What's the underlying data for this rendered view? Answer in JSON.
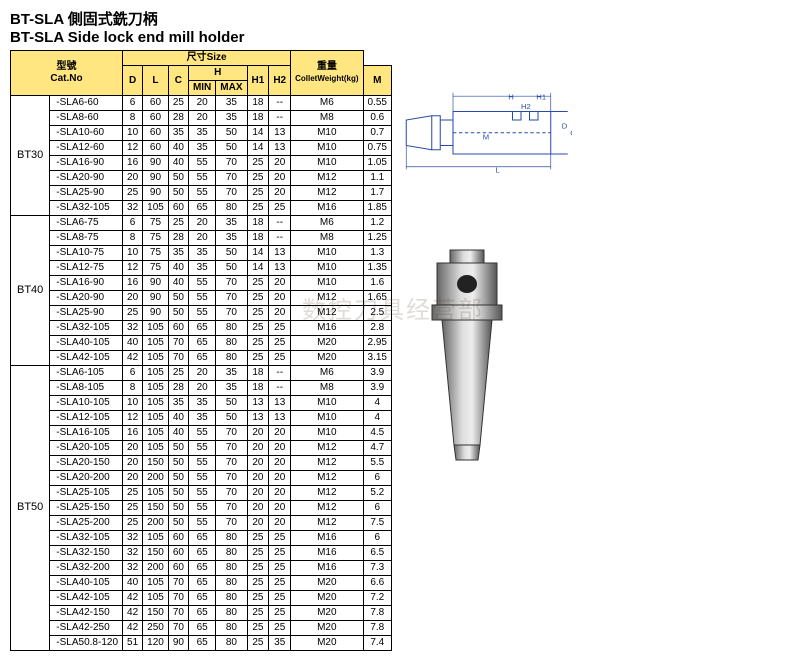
{
  "title_cn": "BT-SLA 側固式銑刀柄",
  "title_en": "BT-SLA Side lock end mill holder",
  "header": {
    "catno_cn": "型號",
    "catno_en": "Cat.No",
    "size_cn": "尺寸",
    "size_en": "Size",
    "D": "D",
    "L": "L",
    "C": "C",
    "H": "H",
    "MIN": "MIN",
    "MAX": "MAX",
    "H1": "H1",
    "H2": "H2",
    "M": "M",
    "weight_cn": "重量",
    "weight_en": "ColletWeight(kg)"
  },
  "groups": [
    {
      "name": "BT30",
      "rows": [
        {
          "cat": "-SLA6-60",
          "D": "6",
          "L": "60",
          "C": "25",
          "MIN": "20",
          "MAX": "35",
          "H1": "18",
          "H2": "--",
          "M": "M6",
          "W": "0.55"
        },
        {
          "cat": "-SLA8-60",
          "D": "8",
          "L": "60",
          "C": "28",
          "MIN": "20",
          "MAX": "35",
          "H1": "18",
          "H2": "--",
          "M": "M8",
          "W": "0.6"
        },
        {
          "cat": "-SLA10-60",
          "D": "10",
          "L": "60",
          "C": "35",
          "MIN": "35",
          "MAX": "50",
          "H1": "14",
          "H2": "13",
          "M": "M10",
          "W": "0.7"
        },
        {
          "cat": "-SLA12-60",
          "D": "12",
          "L": "60",
          "C": "40",
          "MIN": "35",
          "MAX": "50",
          "H1": "14",
          "H2": "13",
          "M": "M10",
          "W": "0.75"
        },
        {
          "cat": "-SLA16-90",
          "D": "16",
          "L": "90",
          "C": "40",
          "MIN": "55",
          "MAX": "70",
          "H1": "25",
          "H2": "20",
          "M": "M10",
          "W": "1.05"
        },
        {
          "cat": "-SLA20-90",
          "D": "20",
          "L": "90",
          "C": "50",
          "MIN": "55",
          "MAX": "70",
          "H1": "25",
          "H2": "20",
          "M": "M12",
          "W": "1.1"
        },
        {
          "cat": "-SLA25-90",
          "D": "25",
          "L": "90",
          "C": "50",
          "MIN": "55",
          "MAX": "70",
          "H1": "25",
          "H2": "20",
          "M": "M12",
          "W": "1.7"
        },
        {
          "cat": "-SLA32-105",
          "D": "32",
          "L": "105",
          "C": "60",
          "MIN": "65",
          "MAX": "80",
          "H1": "25",
          "H2": "25",
          "M": "M16",
          "W": "1.85"
        }
      ]
    },
    {
      "name": "BT40",
      "rows": [
        {
          "cat": "-SLA6-75",
          "D": "6",
          "L": "75",
          "C": "25",
          "MIN": "20",
          "MAX": "35",
          "H1": "18",
          "H2": "--",
          "M": "M6",
          "W": "1.2"
        },
        {
          "cat": "-SLA8-75",
          "D": "8",
          "L": "75",
          "C": "28",
          "MIN": "20",
          "MAX": "35",
          "H1": "18",
          "H2": "--",
          "M": "M8",
          "W": "1.25"
        },
        {
          "cat": "-SLA10-75",
          "D": "10",
          "L": "75",
          "C": "35",
          "MIN": "35",
          "MAX": "50",
          "H1": "14",
          "H2": "13",
          "M": "M10",
          "W": "1.3"
        },
        {
          "cat": "-SLA12-75",
          "D": "12",
          "L": "75",
          "C": "40",
          "MIN": "35",
          "MAX": "50",
          "H1": "14",
          "H2": "13",
          "M": "M10",
          "W": "1.35"
        },
        {
          "cat": "-SLA16-90",
          "D": "16",
          "L": "90",
          "C": "40",
          "MIN": "55",
          "MAX": "70",
          "H1": "25",
          "H2": "20",
          "M": "M10",
          "W": "1.6"
        },
        {
          "cat": "-SLA20-90",
          "D": "20",
          "L": "90",
          "C": "50",
          "MIN": "55",
          "MAX": "70",
          "H1": "25",
          "H2": "20",
          "M": "M12",
          "W": "1.65"
        },
        {
          "cat": "-SLA25-90",
          "D": "25",
          "L": "90",
          "C": "50",
          "MIN": "55",
          "MAX": "70",
          "H1": "25",
          "H2": "20",
          "M": "M12",
          "W": "2.5"
        },
        {
          "cat": "-SLA32-105",
          "D": "32",
          "L": "105",
          "C": "60",
          "MIN": "65",
          "MAX": "80",
          "H1": "25",
          "H2": "25",
          "M": "M16",
          "W": "2.8"
        },
        {
          "cat": "-SLA40-105",
          "D": "40",
          "L": "105",
          "C": "70",
          "MIN": "65",
          "MAX": "80",
          "H1": "25",
          "H2": "25",
          "M": "M20",
          "W": "2.95"
        },
        {
          "cat": "-SLA42-105",
          "D": "42",
          "L": "105",
          "C": "70",
          "MIN": "65",
          "MAX": "80",
          "H1": "25",
          "H2": "25",
          "M": "M20",
          "W": "3.15"
        }
      ]
    },
    {
      "name": "BT50",
      "rows": [
        {
          "cat": "-SLA6-105",
          "D": "6",
          "L": "105",
          "C": "25",
          "MIN": "20",
          "MAX": "35",
          "H1": "18",
          "H2": "--",
          "M": "M6",
          "W": "3.9"
        },
        {
          "cat": "-SLA8-105",
          "D": "8",
          "L": "105",
          "C": "28",
          "MIN": "20",
          "MAX": "35",
          "H1": "18",
          "H2": "--",
          "M": "M8",
          "W": "3.9"
        },
        {
          "cat": "-SLA10-105",
          "D": "10",
          "L": "105",
          "C": "35",
          "MIN": "35",
          "MAX": "50",
          "H1": "13",
          "H2": "13",
          "M": "M10",
          "W": "4"
        },
        {
          "cat": "-SLA12-105",
          "D": "12",
          "L": "105",
          "C": "40",
          "MIN": "35",
          "MAX": "50",
          "H1": "13",
          "H2": "13",
          "M": "M10",
          "W": "4"
        },
        {
          "cat": "-SLA16-105",
          "D": "16",
          "L": "105",
          "C": "40",
          "MIN": "55",
          "MAX": "70",
          "H1": "20",
          "H2": "20",
          "M": "M10",
          "W": "4.5"
        },
        {
          "cat": "-SLA20-105",
          "D": "20",
          "L": "105",
          "C": "50",
          "MIN": "55",
          "MAX": "70",
          "H1": "20",
          "H2": "20",
          "M": "M12",
          "W": "4.7"
        },
        {
          "cat": "-SLA20-150",
          "D": "20",
          "L": "150",
          "C": "50",
          "MIN": "55",
          "MAX": "70",
          "H1": "20",
          "H2": "20",
          "M": "M12",
          "W": "5.5"
        },
        {
          "cat": "-SLA20-200",
          "D": "20",
          "L": "200",
          "C": "50",
          "MIN": "55",
          "MAX": "70",
          "H1": "20",
          "H2": "20",
          "M": "M12",
          "W": "6"
        },
        {
          "cat": "-SLA25-105",
          "D": "25",
          "L": "105",
          "C": "50",
          "MIN": "55",
          "MAX": "70",
          "H1": "20",
          "H2": "20",
          "M": "M12",
          "W": "5.2"
        },
        {
          "cat": "-SLA25-150",
          "D": "25",
          "L": "150",
          "C": "50",
          "MIN": "55",
          "MAX": "70",
          "H1": "20",
          "H2": "20",
          "M": "M12",
          "W": "6"
        },
        {
          "cat": "-SLA25-200",
          "D": "25",
          "L": "200",
          "C": "50",
          "MIN": "55",
          "MAX": "70",
          "H1": "20",
          "H2": "20",
          "M": "M12",
          "W": "7.5"
        },
        {
          "cat": "-SLA32-105",
          "D": "32",
          "L": "105",
          "C": "60",
          "MIN": "65",
          "MAX": "80",
          "H1": "25",
          "H2": "25",
          "M": "M16",
          "W": "6"
        },
        {
          "cat": "-SLA32-150",
          "D": "32",
          "L": "150",
          "C": "60",
          "MIN": "65",
          "MAX": "80",
          "H1": "25",
          "H2": "25",
          "M": "M16",
          "W": "6.5"
        },
        {
          "cat": "-SLA32-200",
          "D": "32",
          "L": "200",
          "C": "60",
          "MIN": "65",
          "MAX": "80",
          "H1": "25",
          "H2": "25",
          "M": "M16",
          "W": "7.3"
        },
        {
          "cat": "-SLA40-105",
          "D": "40",
          "L": "105",
          "C": "70",
          "MIN": "65",
          "MAX": "80",
          "H1": "25",
          "H2": "25",
          "M": "M20",
          "W": "6.6"
        },
        {
          "cat": "-SLA42-105",
          "D": "42",
          "L": "105",
          "C": "70",
          "MIN": "65",
          "MAX": "80",
          "H1": "25",
          "H2": "25",
          "M": "M20",
          "W": "7.2"
        },
        {
          "cat": "-SLA42-150",
          "D": "42",
          "L": "150",
          "C": "70",
          "MIN": "65",
          "MAX": "80",
          "H1": "25",
          "H2": "25",
          "M": "M20",
          "W": "7.8"
        },
        {
          "cat": "-SLA42-250",
          "D": "42",
          "L": "250",
          "C": "70",
          "MIN": "65",
          "MAX": "80",
          "H1": "25",
          "H2": "25",
          "M": "M20",
          "W": "7.8"
        },
        {
          "cat": "-SLA50.8-120",
          "D": "51",
          "L": "120",
          "C": "90",
          "MIN": "65",
          "MAX": "80",
          "H1": "25",
          "H2": "35",
          "M": "M20",
          "W": "7.4"
        }
      ]
    }
  ],
  "diagram": {
    "labels": {
      "H": "H",
      "H1": "H1",
      "H2": "H2",
      "M": "M",
      "D": "D",
      "C": "C",
      "L": "L"
    }
  },
  "watermark": "数控刀具经营部",
  "colors": {
    "header_bg": "#ffe680",
    "border": "#000000"
  }
}
